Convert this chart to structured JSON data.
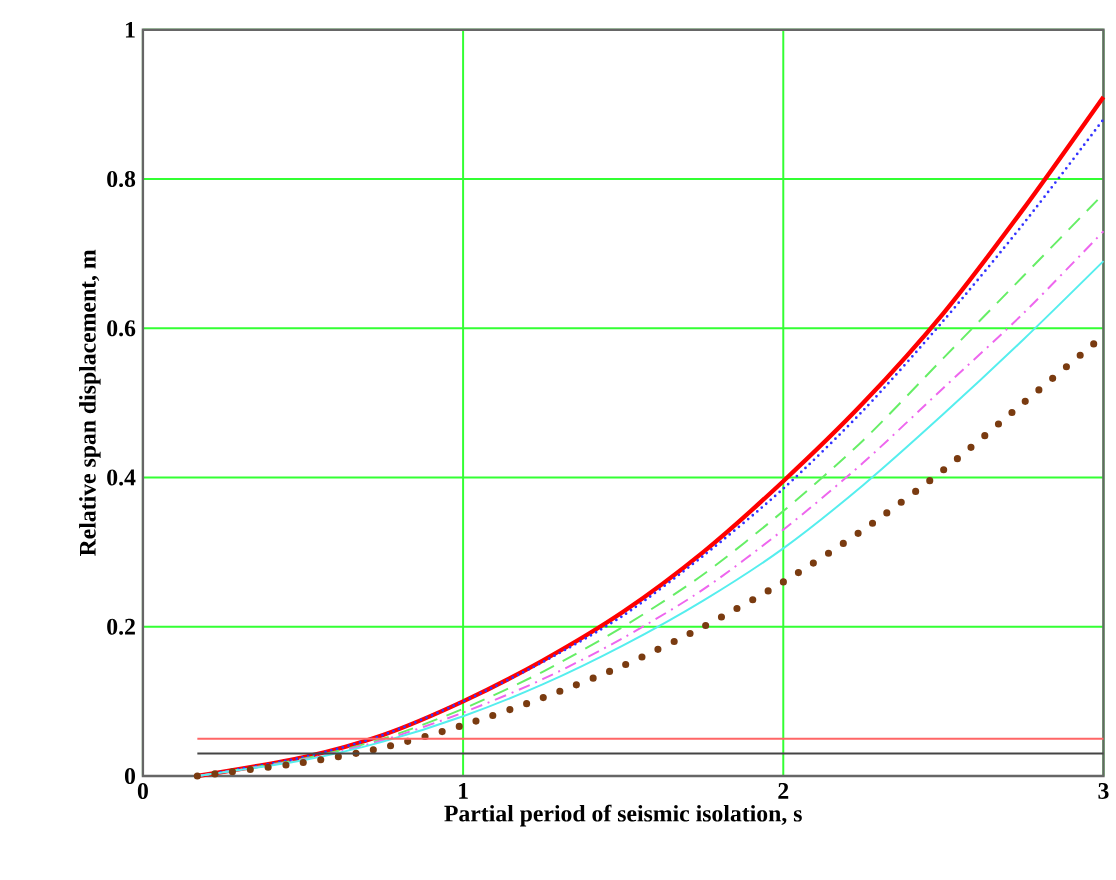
{
  "chart_data": {
    "type": "line",
    "xlabel": "Partial period of seismic isolation, s",
    "ylabel": "Relative span displacement, m",
    "x": [
      0.17,
      0.5,
      0.75,
      1,
      1.25,
      1.5,
      1.75,
      2,
      2.25,
      2.5,
      2.75,
      3
    ],
    "xlim": [
      0,
      3
    ],
    "ylim": [
      0,
      1
    ],
    "xticks": [
      0,
      1,
      2,
      3
    ],
    "yticks": [
      0,
      0.2,
      0.4,
      0.6,
      0.8,
      1
    ],
    "grid": true,
    "series": [
      {
        "color": "#ff0000",
        "line_style": "solid",
        "values": [
          0,
          0.025,
          0.055,
          0.1,
          0.155,
          0.22,
          0.3,
          0.395,
          0.5,
          0.62,
          0.76,
          0.91
        ]
      },
      {
        "color": "#3333ff",
        "line_style": "dotted",
        "values": [
          0,
          0.025,
          0.055,
          0.1,
          0.153,
          0.215,
          0.295,
          0.385,
          0.49,
          0.61,
          0.74,
          0.88
        ]
      },
      {
        "color": "#66ee66",
        "line_style": "dashed",
        "values": [
          0,
          0.023,
          0.05,
          0.09,
          0.14,
          0.2,
          0.27,
          0.355,
          0.45,
          0.56,
          0.67,
          0.78
        ]
      },
      {
        "color": "#ee66ee",
        "line_style": "dashdot",
        "values": [
          0,
          0.022,
          0.048,
          0.085,
          0.13,
          0.185,
          0.25,
          0.33,
          0.42,
          0.52,
          0.62,
          0.73
        ]
      },
      {
        "color": "#55eeee",
        "line_style": "solid",
        "values": [
          0,
          0.021,
          0.046,
          0.08,
          0.123,
          0.175,
          0.235,
          0.305,
          0.39,
          0.485,
          0.585,
          0.69
        ]
      },
      {
        "color": "#7a3b10",
        "line_style": "dotted",
        "values": [
          0,
          0.018,
          0.038,
          0.068,
          0.105,
          0.148,
          0.2,
          0.26,
          0.33,
          0.41,
          0.5,
          0.59
        ]
      },
      {
        "color": "#ff6666",
        "line_style": "solid",
        "values": [
          0.05,
          0.05,
          0.05,
          0.05,
          0.05,
          0.05,
          0.05,
          0.05,
          0.05,
          0.05,
          0.05,
          0.05
        ]
      },
      {
        "color": "#444444",
        "line_style": "solid",
        "values": [
          0.03,
          0.03,
          0.03,
          0.03,
          0.03,
          0.03,
          0.03,
          0.03,
          0.03,
          0.03,
          0.03,
          0.03
        ]
      }
    ]
  }
}
